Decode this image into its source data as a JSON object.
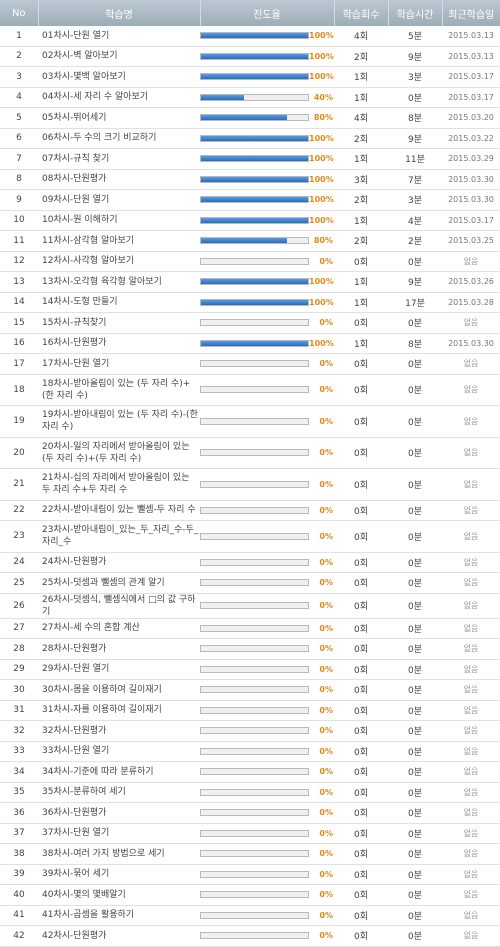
{
  "header": {
    "no": "No",
    "name": "학습명",
    "progress": "진도율",
    "count": "학습회수",
    "time": "학습시간",
    "recent": "최근학습일"
  },
  "colors": {
    "bar_fill": "#2a6bc0",
    "percent_text": "#e08a1a",
    "header_bg": "#a9b8c3"
  },
  "rows": [
    {
      "no": "1",
      "name": "01차시-단원 열기",
      "pct": "100%",
      "p": 100,
      "count": "4회",
      "time": "5분",
      "date": "2015.03.13",
      "lines": 1
    },
    {
      "no": "2",
      "name": "02차시-벽 알아보기",
      "pct": "100%",
      "p": 100,
      "count": "2회",
      "time": "9분",
      "date": "2015.03.13",
      "lines": 1
    },
    {
      "no": "3",
      "name": "03차시-몇백 알아보기",
      "pct": "100%",
      "p": 100,
      "count": "1회",
      "time": "3분",
      "date": "2015.03.17",
      "lines": 1
    },
    {
      "no": "4",
      "name": "04차시-세 자리 수 알아보기",
      "pct": "40%",
      "p": 40,
      "count": "1회",
      "time": "0분",
      "date": "2015.03.17",
      "lines": 1
    },
    {
      "no": "5",
      "name": "05차시-뛰어세기",
      "pct": "80%",
      "p": 80,
      "count": "4회",
      "time": "8분",
      "date": "2015.03.20",
      "lines": 1
    },
    {
      "no": "6",
      "name": "06차시-두 수의 크기 비교하기",
      "pct": "100%",
      "p": 100,
      "count": "2회",
      "time": "9분",
      "date": "2015.03.22",
      "lines": 1
    },
    {
      "no": "7",
      "name": "07차시-규칙 찾기",
      "pct": "100%",
      "p": 100,
      "count": "1회",
      "time": "11분",
      "date": "2015.03.29",
      "lines": 1
    },
    {
      "no": "8",
      "name": "08차시-단원평가",
      "pct": "100%",
      "p": 100,
      "count": "3회",
      "time": "7분",
      "date": "2015.03.30",
      "lines": 1
    },
    {
      "no": "9",
      "name": "09차시-단원 열기",
      "pct": "100%",
      "p": 100,
      "count": "2회",
      "time": "3분",
      "date": "2015.03.30",
      "lines": 1
    },
    {
      "no": "10",
      "name": "10차시-원 이해하기",
      "pct": "100%",
      "p": 100,
      "count": "1회",
      "time": "4분",
      "date": "2015.03.17",
      "lines": 1
    },
    {
      "no": "11",
      "name": "11차시-삼각형 알아보기",
      "pct": "80%",
      "p": 80,
      "count": "2회",
      "time": "2분",
      "date": "2015.03.25",
      "lines": 1
    },
    {
      "no": "12",
      "name": "12차시-사각형 알아보기",
      "pct": "0%",
      "p": 0,
      "count": "0회",
      "time": "0분",
      "date": "없음",
      "lines": 1
    },
    {
      "no": "13",
      "name": "13차시-오각형 육각형 알아보기",
      "pct": "100%",
      "p": 100,
      "count": "1회",
      "time": "9분",
      "date": "2015.03.26",
      "lines": 1
    },
    {
      "no": "14",
      "name": "14차시-도형 만들기",
      "pct": "100%",
      "p": 100,
      "count": "1회",
      "time": "17분",
      "date": "2015.03.28",
      "lines": 1
    },
    {
      "no": "15",
      "name": "15차시-규칙찾기",
      "pct": "0%",
      "p": 0,
      "count": "0회",
      "time": "0분",
      "date": "없음",
      "lines": 1
    },
    {
      "no": "16",
      "name": "16차시-단원평가",
      "pct": "100%",
      "p": 100,
      "count": "1회",
      "time": "8분",
      "date": "2015.03.30",
      "lines": 1
    },
    {
      "no": "17",
      "name": "17차시-단원 열기",
      "pct": "0%",
      "p": 0,
      "count": "0회",
      "time": "0분",
      "date": "없음",
      "lines": 1
    },
    {
      "no": "18",
      "name": "18차시-받아올림이 있는 (두 자리 수)+(한 자리 수)",
      "pct": "0%",
      "p": 0,
      "count": "0회",
      "time": "0분",
      "date": "없음",
      "lines": 2
    },
    {
      "no": "19",
      "name": "19차시-받아내림이 있는 (두 자리 수)-(한 자리 수)",
      "pct": "0%",
      "p": 0,
      "count": "0회",
      "time": "0분",
      "date": "없음",
      "lines": 2
    },
    {
      "no": "20",
      "name": "20차시-일의 자리에서 받아올림이 있는 (두 자리 수)+(두 자리 수)",
      "pct": "0%",
      "p": 0,
      "count": "0회",
      "time": "0분",
      "date": "없음",
      "lines": 2
    },
    {
      "no": "21",
      "name": "21차시-십의 자리에서 받아올림이 있는 두 자리 수+두 자리 수",
      "pct": "0%",
      "p": 0,
      "count": "0회",
      "time": "0분",
      "date": "없음",
      "lines": 2
    },
    {
      "no": "22",
      "name": "22차시-받아내림이 있는 뺄셈-두 자리 수",
      "pct": "0%",
      "p": 0,
      "count": "0회",
      "time": "0분",
      "date": "없음",
      "lines": 1
    },
    {
      "no": "23",
      "name": "23차시-받아내림이_있는_두_자리_수-두_자리_수",
      "pct": "0%",
      "p": 0,
      "count": "0회",
      "time": "0분",
      "date": "없음",
      "lines": 2
    },
    {
      "no": "24",
      "name": "24차시-단원평가",
      "pct": "0%",
      "p": 0,
      "count": "0회",
      "time": "0분",
      "date": "없음",
      "lines": 1
    },
    {
      "no": "25",
      "name": "25차시-덧셈과 뺄셈의 관계 알기",
      "pct": "0%",
      "p": 0,
      "count": "0회",
      "time": "0분",
      "date": "없음",
      "lines": 1
    },
    {
      "no": "26",
      "name": "26차시-덧셈식, 뺄셈식에서 □의 값 구하기",
      "pct": "0%",
      "p": 0,
      "count": "0회",
      "time": "0분",
      "date": "없음",
      "lines": 1
    },
    {
      "no": "27",
      "name": "27차시-세 수의 혼합 계산",
      "pct": "0%",
      "p": 0,
      "count": "0회",
      "time": "0분",
      "date": "없음",
      "lines": 1
    },
    {
      "no": "28",
      "name": "28차시-단원평가",
      "pct": "0%",
      "p": 0,
      "count": "0회",
      "time": "0분",
      "date": "없음",
      "lines": 1
    },
    {
      "no": "29",
      "name": "29차시-단원 열기",
      "pct": "0%",
      "p": 0,
      "count": "0회",
      "time": "0분",
      "date": "없음",
      "lines": 1
    },
    {
      "no": "30",
      "name": "30차시-몸을 이용하여 길이재기",
      "pct": "0%",
      "p": 0,
      "count": "0회",
      "time": "0분",
      "date": "없음",
      "lines": 1
    },
    {
      "no": "31",
      "name": "31차시-자를 이용하여 길이재기",
      "pct": "0%",
      "p": 0,
      "count": "0회",
      "time": "0분",
      "date": "없음",
      "lines": 1
    },
    {
      "no": "32",
      "name": "32차시-단원평가",
      "pct": "0%",
      "p": 0,
      "count": "0회",
      "time": "0분",
      "date": "없음",
      "lines": 1
    },
    {
      "no": "33",
      "name": "33차시-단원 열기",
      "pct": "0%",
      "p": 0,
      "count": "0회",
      "time": "0분",
      "date": "없음",
      "lines": 1
    },
    {
      "no": "34",
      "name": "34차시-기준에 따라 분류하기",
      "pct": "0%",
      "p": 0,
      "count": "0회",
      "time": "0분",
      "date": "없음",
      "lines": 1
    },
    {
      "no": "35",
      "name": "35차시-분류하여 세기",
      "pct": "0%",
      "p": 0,
      "count": "0회",
      "time": "0분",
      "date": "없음",
      "lines": 1
    },
    {
      "no": "36",
      "name": "36차시-단원평가",
      "pct": "0%",
      "p": 0,
      "count": "0회",
      "time": "0분",
      "date": "없음",
      "lines": 1
    },
    {
      "no": "37",
      "name": "37차시-단원 열기",
      "pct": "0%",
      "p": 0,
      "count": "0회",
      "time": "0분",
      "date": "없음",
      "lines": 1
    },
    {
      "no": "38",
      "name": "38차시-여러 가지 방법으로 세기",
      "pct": "0%",
      "p": 0,
      "count": "0회",
      "time": "0분",
      "date": "없음",
      "lines": 1
    },
    {
      "no": "39",
      "name": "39차시-묶어 세기",
      "pct": "0%",
      "p": 0,
      "count": "0회",
      "time": "0분",
      "date": "없음",
      "lines": 1
    },
    {
      "no": "40",
      "name": "40차시-몇의 몇배알기",
      "pct": "0%",
      "p": 0,
      "count": "0회",
      "time": "0분",
      "date": "없음",
      "lines": 1
    },
    {
      "no": "41",
      "name": "41차시-곱셈을 활용하기",
      "pct": "0%",
      "p": 0,
      "count": "0회",
      "time": "0분",
      "date": "없음",
      "lines": 1
    },
    {
      "no": "42",
      "name": "42차시-단원평가",
      "pct": "0%",
      "p": 0,
      "count": "0회",
      "time": "0분",
      "date": "없음",
      "lines": 1
    }
  ]
}
